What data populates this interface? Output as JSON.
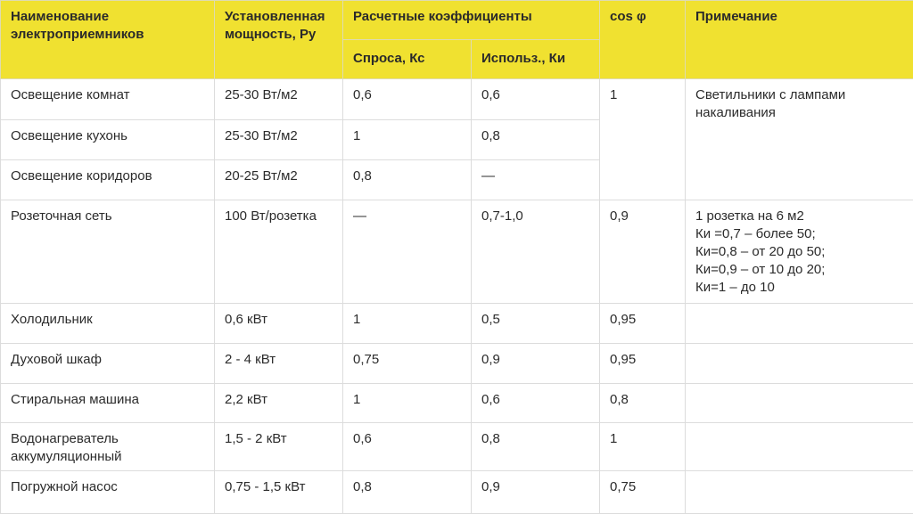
{
  "header": {
    "name": "Наименование электроприемников",
    "power": "Установленная мощность, Ру",
    "coefficients": "Расчетные коэффициенты",
    "demand": "Спроса, Кс",
    "usage": "Использ., Ки",
    "cos": "cos φ",
    "note": "Примечание"
  },
  "rows": [
    {
      "name": "Освещение комнат",
      "power": "25-30 Вт/м2",
      "kc": "0,6",
      "ki": "0,6",
      "cos": "1",
      "note": "Светильники с лампами накаливания"
    },
    {
      "name": "Освещение кухонь",
      "power": "25-30 Вт/м2",
      "kc": "1",
      "ki": "0,8"
    },
    {
      "name": "Освещение коридоров",
      "power": "20-25 Вт/м2",
      "kc": "0,8",
      "ki": "—"
    },
    {
      "name": "Розеточная сеть",
      "power": "100 Вт/розетка",
      "kc": "—",
      "ki": "0,7-1,0",
      "cos": "0,9",
      "note": "1 розетка на 6 м2\nКи =0,7 – более 50;\nКи=0,8 – от 20 до 50;\nКи=0,9 – от 10 до 20;\nКи=1 – до 10"
    },
    {
      "name": "Холодильник",
      "power": "0,6 кВт",
      "kc": "1",
      "ki": "0,5",
      "cos": "0,95",
      "note": ""
    },
    {
      "name": "Духовой шкаф",
      "power": "2 - 4 кВт",
      "kc": "0,75",
      "ki": "0,9",
      "cos": "0,95",
      "note": ""
    },
    {
      "name": "Стиральная машина",
      "power": "2,2 кВт",
      "kc": "1",
      "ki": "0,6",
      "cos": "0,8",
      "note": ""
    },
    {
      "name": "Водонагреватель аккумуляционный",
      "power": "1,5 - 2 кВт",
      "kc": "0,6",
      "ki": "0,8",
      "cos": "1",
      "note": ""
    },
    {
      "name": "Погружной насос",
      "power": "0,75 - 1,5 кВт",
      "kc": "0,8",
      "ki": "0,9",
      "cos": "0,75",
      "note": ""
    }
  ]
}
